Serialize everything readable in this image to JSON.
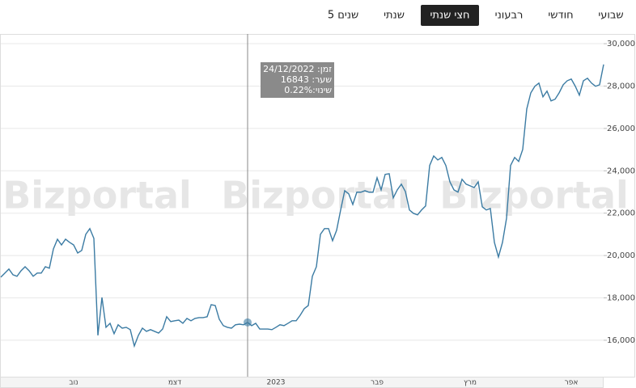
{
  "tabs": [
    "5 שנים",
    "שנתי",
    "חצי שנתי",
    "רבעוני",
    "חודשי",
    "שבועי"
  ],
  "active_tab": "חצי שנתי",
  "chart_data": {
    "type": "line",
    "watermark": "Bizportal",
    "categories": [
      null,
      null,
      null,
      null,
      null,
      null,
      null,
      null,
      null,
      null,
      null,
      null,
      null,
      null,
      null,
      null,
      null,
      null,
      "נוב",
      null,
      null,
      null,
      null,
      null,
      null,
      null,
      null,
      null,
      null,
      null,
      null,
      null,
      null,
      null,
      null,
      null,
      null,
      null,
      null,
      null,
      null,
      null,
      null,
      "דצמ",
      null,
      null,
      null,
      null,
      null,
      null,
      null,
      null,
      null,
      null,
      null,
      null,
      null,
      null,
      null,
      null,
      null,
      null,
      null,
      null,
      null,
      null,
      null,
      null,
      "2023",
      null,
      null,
      null,
      null,
      null,
      null,
      null,
      null,
      null,
      null,
      null,
      null,
      null,
      null,
      null,
      null,
      null,
      null,
      null,
      null,
      null,
      null,
      null,
      null,
      "פבר",
      null,
      null,
      null,
      null,
      null,
      null,
      null,
      null,
      null,
      null,
      null,
      null,
      null,
      null,
      null,
      null,
      null,
      null,
      null,
      null,
      null,
      null,
      "מרץ",
      null,
      null,
      null,
      null,
      null,
      null,
      null,
      null,
      null,
      null,
      null,
      null,
      null,
      null,
      null,
      null,
      null,
      null,
      null,
      null,
      null,
      null,
      null,
      null,
      "אפר",
      null,
      null,
      null,
      null,
      null,
      null,
      null,
      null
    ],
    "series": [
      {
        "color": "#3b7ba3",
        "values": [
          18980,
          19170,
          19360,
          19090,
          19020,
          19280,
          19470,
          19280,
          19020,
          19170,
          19170,
          19470,
          19400,
          20310,
          20770,
          20500,
          20770,
          20620,
          20500,
          20120,
          20240,
          21000,
          21270,
          20810,
          16230,
          18020,
          16610,
          16800,
          16310,
          16730,
          16570,
          16610,
          16500,
          15730,
          16230,
          16570,
          16420,
          16500,
          16420,
          16340,
          16530,
          17110,
          16880,
          16920,
          16950,
          16800,
          17030,
          16920,
          17030,
          17070,
          17070,
          17110,
          17680,
          17640,
          16990,
          16690,
          16610,
          16570,
          16730,
          16760,
          16730,
          16843,
          16690,
          16800,
          16530,
          16530,
          16530,
          16500,
          16610,
          16730,
          16690,
          16800,
          16920,
          16920,
          17180,
          17490,
          17640,
          19020,
          19470,
          21000,
          21270,
          21270,
          20700,
          21190,
          22150,
          23060,
          22910,
          22410,
          22990,
          22990,
          23060,
          22990,
          22990,
          23670,
          23100,
          23830,
          23860,
          22720,
          23100,
          23370,
          23020,
          22150,
          21990,
          21920,
          22150,
          22340,
          24250,
          24700,
          24510,
          24630,
          24250,
          23480,
          23100,
          22990,
          23600,
          23370,
          23290,
          23210,
          23480,
          22300,
          22150,
          22220,
          20620,
          19930,
          20620,
          21760,
          24250,
          24630,
          24440,
          25010,
          26920,
          27680,
          27990,
          28140,
          27490,
          27760,
          27300,
          27380,
          27680,
          28060,
          28250,
          28330,
          27990,
          27570,
          28250,
          28370,
          28140,
          27990,
          28060,
          29020
        ]
      }
    ],
    "ylim": [
      14280,
      30460
    ],
    "yticks": [
      {
        "value": 16000,
        "label": "16,000"
      },
      {
        "value": 18000,
        "label": "18,000"
      },
      {
        "value": 20000,
        "label": "20,000"
      },
      {
        "value": 22000,
        "label": "22,000"
      },
      {
        "value": 24000,
        "label": "24,000"
      },
      {
        "value": 26000,
        "label": "26,000"
      },
      {
        "value": 28000,
        "label": "28,000"
      },
      {
        "value": 30000,
        "label": "30,000"
      }
    ],
    "grid": true,
    "crosshair_index": 61,
    "tooltip": {
      "time_label": "זמן:",
      "time": "24/12/2022",
      "price_label": "שער:",
      "price": "16843",
      "change_label": "שינוי:",
      "change": "0.22%"
    }
  }
}
